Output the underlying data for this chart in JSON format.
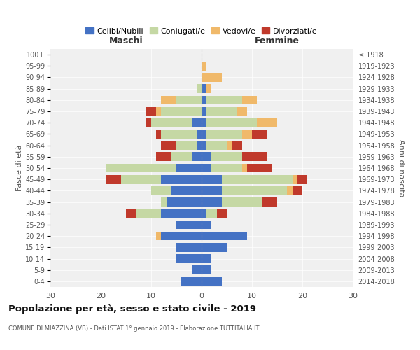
{
  "age_groups": [
    "0-4",
    "5-9",
    "10-14",
    "15-19",
    "20-24",
    "25-29",
    "30-34",
    "35-39",
    "40-44",
    "45-49",
    "50-54",
    "55-59",
    "60-64",
    "65-69",
    "70-74",
    "75-79",
    "80-84",
    "85-89",
    "90-94",
    "95-99",
    "100+"
  ],
  "birth_years": [
    "2014-2018",
    "2009-2013",
    "2004-2008",
    "1999-2003",
    "1994-1998",
    "1989-1993",
    "1984-1988",
    "1979-1983",
    "1974-1978",
    "1969-1973",
    "1964-1968",
    "1959-1963",
    "1954-1958",
    "1949-1953",
    "1944-1948",
    "1939-1943",
    "1934-1938",
    "1929-1933",
    "1924-1928",
    "1919-1923",
    "≤ 1918"
  ],
  "colors": {
    "celibi": "#4472C4",
    "coniugati": "#c5d8a4",
    "vedovi": "#f0b96a",
    "divorziati": "#c0392b"
  },
  "maschi": {
    "celibi": [
      4,
      2,
      5,
      5,
      8,
      5,
      8,
      7,
      6,
      8,
      5,
      2,
      1,
      1,
      2,
      0,
      0,
      0,
      0,
      0,
      0
    ],
    "coniugati": [
      0,
      0,
      0,
      0,
      0,
      0,
      5,
      1,
      4,
      8,
      14,
      4,
      4,
      7,
      8,
      8,
      5,
      1,
      0,
      0,
      0
    ],
    "vedovi": [
      0,
      0,
      0,
      0,
      1,
      0,
      0,
      0,
      0,
      0,
      0,
      0,
      0,
      0,
      0,
      1,
      3,
      0,
      0,
      0,
      0
    ],
    "divorziati": [
      0,
      0,
      0,
      0,
      0,
      0,
      2,
      0,
      0,
      3,
      0,
      3,
      3,
      1,
      1,
      2,
      0,
      0,
      0,
      0,
      0
    ]
  },
  "femmine": {
    "celibi": [
      4,
      2,
      2,
      5,
      9,
      2,
      1,
      4,
      4,
      4,
      2,
      2,
      1,
      1,
      1,
      1,
      1,
      1,
      0,
      0,
      0
    ],
    "coniugati": [
      0,
      0,
      0,
      0,
      0,
      0,
      2,
      8,
      13,
      14,
      6,
      6,
      4,
      7,
      10,
      6,
      7,
      0,
      0,
      0,
      0
    ],
    "vedovi": [
      0,
      0,
      0,
      0,
      0,
      0,
      0,
      0,
      1,
      1,
      1,
      0,
      1,
      2,
      4,
      2,
      3,
      1,
      4,
      1,
      0
    ],
    "divorziati": [
      0,
      0,
      0,
      0,
      0,
      0,
      2,
      3,
      2,
      2,
      5,
      5,
      2,
      3,
      0,
      0,
      0,
      0,
      0,
      0,
      0
    ]
  },
  "xlim": 30,
  "title": "Popolazione per età, sesso e stato civile - 2019",
  "subtitle": "COMUNE DI MIAZZINA (VB) - Dati ISTAT 1° gennaio 2019 - Elaborazione TUTTITALIA.IT",
  "ylabel_left": "Fasce di età",
  "ylabel_right": "Anni di nascita",
  "xlabel_left": "Maschi",
  "xlabel_right": "Femmine",
  "legend_labels": [
    "Celibi/Nubili",
    "Coniugati/e",
    "Vedovi/e",
    "Divorziati/e"
  ],
  "bg_color": "#f0f0f0"
}
